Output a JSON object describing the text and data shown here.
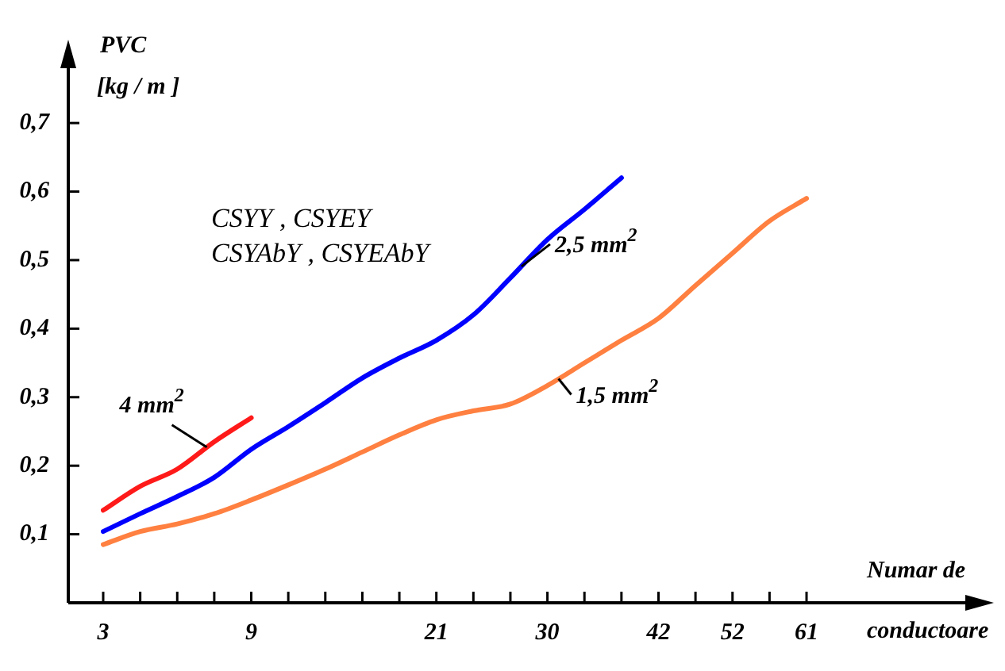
{
  "chart_data": {
    "type": "line",
    "xlabel": "Numar de conductoare",
    "ylabel": "PVC [kg / m ]",
    "categories": [
      "3",
      null,
      null,
      null,
      "9",
      null,
      null,
      null,
      null,
      "21",
      null,
      null,
      "30",
      null,
      null,
      "42",
      null,
      "52",
      null,
      "61"
    ],
    "ylim": [
      0,
      0.78
    ],
    "yticks": [
      {
        "value": 0.1,
        "label": "0,1"
      },
      {
        "value": 0.2,
        "label": "0,2"
      },
      {
        "value": 0.3,
        "label": "0,3"
      },
      {
        "value": 0.4,
        "label": "0,4"
      },
      {
        "value": 0.5,
        "label": "0,5"
      },
      {
        "value": 0.6,
        "label": "0,6"
      },
      {
        "value": 0.7,
        "label": "0,7"
      }
    ],
    "series": [
      {
        "name": "4 mm$^{2}$",
        "color": "#ff1a1a",
        "values": [
          0.135,
          0.17,
          0.195,
          0.235,
          0.27,
          null,
          null,
          null,
          null,
          null,
          null,
          null,
          null,
          null,
          null,
          null,
          null,
          null,
          null,
          null
        ]
      },
      {
        "name": "2,5 mm$^{2}$",
        "color": "#0000ff",
        "values": [
          0.104,
          0.13,
          0.155,
          0.183,
          0.224,
          0.257,
          0.292,
          0.328,
          0.357,
          0.383,
          0.42,
          0.474,
          0.53,
          0.574,
          0.62,
          null,
          null,
          null,
          null,
          null
        ]
      },
      {
        "name": "1,5 mm$^{2}$",
        "color": "#ff8040",
        "values": [
          0.085,
          0.104,
          0.115,
          0.13,
          0.15,
          0.172,
          0.195,
          0.22,
          0.245,
          0.267,
          0.28,
          0.29,
          0.317,
          0.35,
          0.383,
          0.415,
          0.463,
          0.51,
          0.557,
          0.59
        ]
      }
    ],
    "annotations": [
      "CSYY , CSYEY",
      "CSYAbY , CSYEAbY"
    ],
    "marker": "none",
    "line_style": "solid",
    "grid": false,
    "legend": false
  }
}
